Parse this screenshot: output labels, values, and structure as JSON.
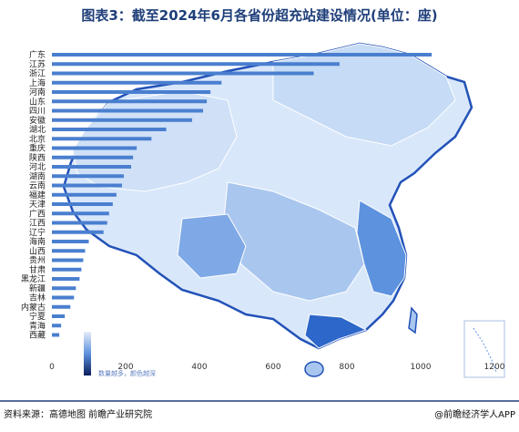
{
  "title": "图表3：截至2024年6月各省份超充站建设情况(单位：座)",
  "footer": {
    "source": "资料来源：高德地图 前瞻产业研究院",
    "brand": "@前瞻经济学人APP"
  },
  "legend": {
    "text": "数量越多，颜色越深"
  },
  "colors": {
    "bar": "#4a7fcf",
    "title": "#1f3f7a",
    "map_light": "#d9e7fa",
    "map_mid": "#a9c6ef",
    "map_dark": "#5d92de",
    "map_darkest": "#2c67c9",
    "border": "#2252b8"
  },
  "chart_data": {
    "type": "bar",
    "orientation": "horizontal",
    "title": "图表3：截至2024年6月各省份超充站建设情况(单位：座)",
    "categories": [
      "广东",
      "江苏",
      "浙江",
      "上海",
      "河南",
      "山东",
      "四川",
      "安徽",
      "湖北",
      "北京",
      "重庆",
      "陕西",
      "河北",
      "湖南",
      "云南",
      "福建",
      "天津",
      "广西",
      "江西",
      "辽宁",
      "海南",
      "山西",
      "贵州",
      "甘肃",
      "黑龙江",
      "新疆",
      "吉林",
      "内蒙古",
      "宁夏",
      "青海",
      "西藏"
    ],
    "values": [
      1030,
      780,
      710,
      460,
      430,
      420,
      410,
      380,
      310,
      270,
      230,
      220,
      215,
      195,
      190,
      175,
      165,
      155,
      150,
      140,
      100,
      90,
      85,
      80,
      75,
      65,
      60,
      50,
      35,
      25,
      20
    ],
    "xlim": [
      0,
      1200
    ],
    "xticks": [
      "0",
      "200",
      "400",
      "600",
      "800",
      "1000",
      "1200"
    ],
    "grid": false
  }
}
